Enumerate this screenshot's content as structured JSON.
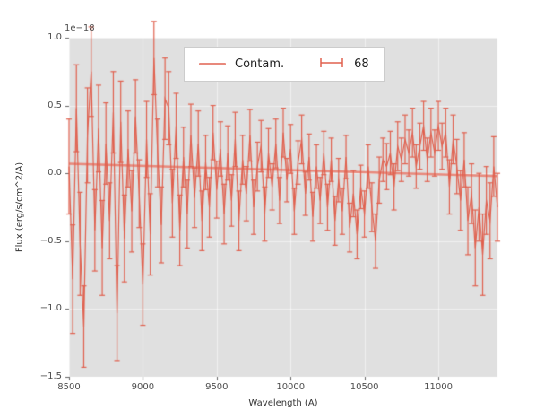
{
  "figure": {
    "background": "#ffffff"
  },
  "chart_data": {
    "type": "line",
    "subtype": "errorbar-spectrum",
    "title": "",
    "xlabel": "Wavelength (A)",
    "ylabel": "Flux (erg/s/cm^2/A)",
    "offset_text": "1e−18",
    "xlim": [
      8500,
      11400
    ],
    "ylim": [
      -1.5,
      1.0
    ],
    "xticks": [
      8500,
      9000,
      9500,
      10000,
      10500,
      11000
    ],
    "xtick_labels": [
      "8500",
      "9000",
      "9500",
      "10000",
      "10500",
      "11000"
    ],
    "yticks": [
      -1.5,
      -1.0,
      -0.5,
      0.0,
      0.5,
      1.0
    ],
    "ytick_labels": [
      "−1.5",
      "−1.0",
      "−0.5",
      "0.0",
      "0.5",
      "1.0"
    ],
    "grid": "on",
    "plot_background": "#e0e0e0",
    "grid_color": "rgba(255,255,255,0.55)",
    "tick_color": "#666666",
    "label_color": "#333333",
    "legend_position": "upper center",
    "legend": [
      {
        "label": "Contam.",
        "type": "line",
        "color": "#e8897c"
      },
      {
        "label": "68",
        "type": "errorbar",
        "color": "#e0604e"
      }
    ],
    "series": [
      {
        "name": "Contam.",
        "type": "line",
        "color": "#e8897c",
        "linewidth": 2.5,
        "x": [
          8500,
          11400
        ],
        "y": [
          0.07,
          -0.02
        ]
      },
      {
        "name": "68",
        "type": "errorbar",
        "color": "#e0604e",
        "linewidth": 1.2,
        "capsize": 3,
        "x_start": 8500,
        "x_step": 25,
        "values": [
          0.05,
          -0.78,
          0.48,
          -0.52,
          -1.13,
          0.28,
          0.75,
          -0.42,
          0.33,
          -0.55,
          0.22,
          -0.35,
          0.45,
          -1.03,
          0.38,
          -0.48,
          0.18,
          -0.28,
          0.42,
          -0.15,
          -0.82,
          0.25,
          -0.45,
          0.85,
          0.15,
          -0.38,
          0.55,
          0.48,
          -0.22,
          0.35,
          -0.42,
          0.12,
          -0.3,
          0.28,
          -0.18,
          0.22,
          -0.35,
          0.08,
          -0.25,
          0.3,
          -0.12,
          0.18,
          -0.3,
          0.15,
          -0.2,
          0.25,
          -0.35,
          0.1,
          -0.15,
          0.28,
          -0.25,
          0.05,
          0.2,
          -0.3,
          0.15,
          -0.1,
          0.22,
          -0.2,
          0.3,
          -0.05,
          0.18,
          -0.28,
          0.08,
          0.25,
          -0.15,
          0.12,
          -0.32,
          0.05,
          -0.2,
          0.15,
          -0.25,
          0.1,
          -0.35,
          -0.05,
          -0.28,
          0.12,
          -0.4,
          -0.15,
          -0.45,
          -0.1,
          -0.3,
          0.05,
          -0.25,
          -0.5,
          -0.05,
          0.1,
          0.05,
          0.15,
          -0.1,
          0.2,
          0.1,
          0.25,
          0.15,
          0.3,
          0.05,
          0.2,
          0.35,
          0.1,
          0.3,
          0.15,
          0.35,
          0.2,
          0.3,
          -0.1,
          0.25,
          0.05,
          -0.2,
          0.1,
          -0.35,
          -0.15,
          -0.55,
          -0.25,
          -0.6,
          -0.2,
          -0.35,
          0.05,
          -0.25
        ],
        "errors": [
          0.35,
          0.4,
          0.32,
          0.38,
          0.3,
          0.35,
          0.33,
          0.3,
          0.32,
          0.35,
          0.3,
          0.28,
          0.3,
          0.35,
          0.3,
          0.32,
          0.28,
          0.3,
          0.27,
          0.25,
          0.3,
          0.28,
          0.3,
          0.27,
          0.25,
          0.28,
          0.3,
          0.27,
          0.25,
          0.24,
          0.26,
          0.22,
          0.25,
          0.23,
          0.22,
          0.24,
          0.22,
          0.2,
          0.22,
          0.2,
          0.21,
          0.2,
          0.22,
          0.2,
          0.19,
          0.2,
          0.22,
          0.18,
          0.2,
          0.19,
          0.2,
          0.18,
          0.19,
          0.2,
          0.18,
          0.17,
          0.18,
          0.17,
          0.18,
          0.16,
          0.18,
          0.17,
          0.16,
          0.18,
          0.16,
          0.17,
          0.18,
          0.16,
          0.17,
          0.16,
          0.17,
          0.16,
          0.18,
          0.16,
          0.17,
          0.16,
          0.18,
          0.17,
          0.18,
          0.16,
          0.17,
          0.16,
          0.18,
          0.2,
          0.17,
          0.16,
          0.17,
          0.16,
          0.17,
          0.18,
          0.16,
          0.18,
          0.17,
          0.18,
          0.16,
          0.17,
          0.18,
          0.16,
          0.18,
          0.17,
          0.18,
          0.17,
          0.18,
          0.2,
          0.18,
          0.2,
          0.22,
          0.2,
          0.25,
          0.22,
          0.28,
          0.25,
          0.3,
          0.25,
          0.28,
          0.22,
          0.25
        ]
      }
    ]
  }
}
